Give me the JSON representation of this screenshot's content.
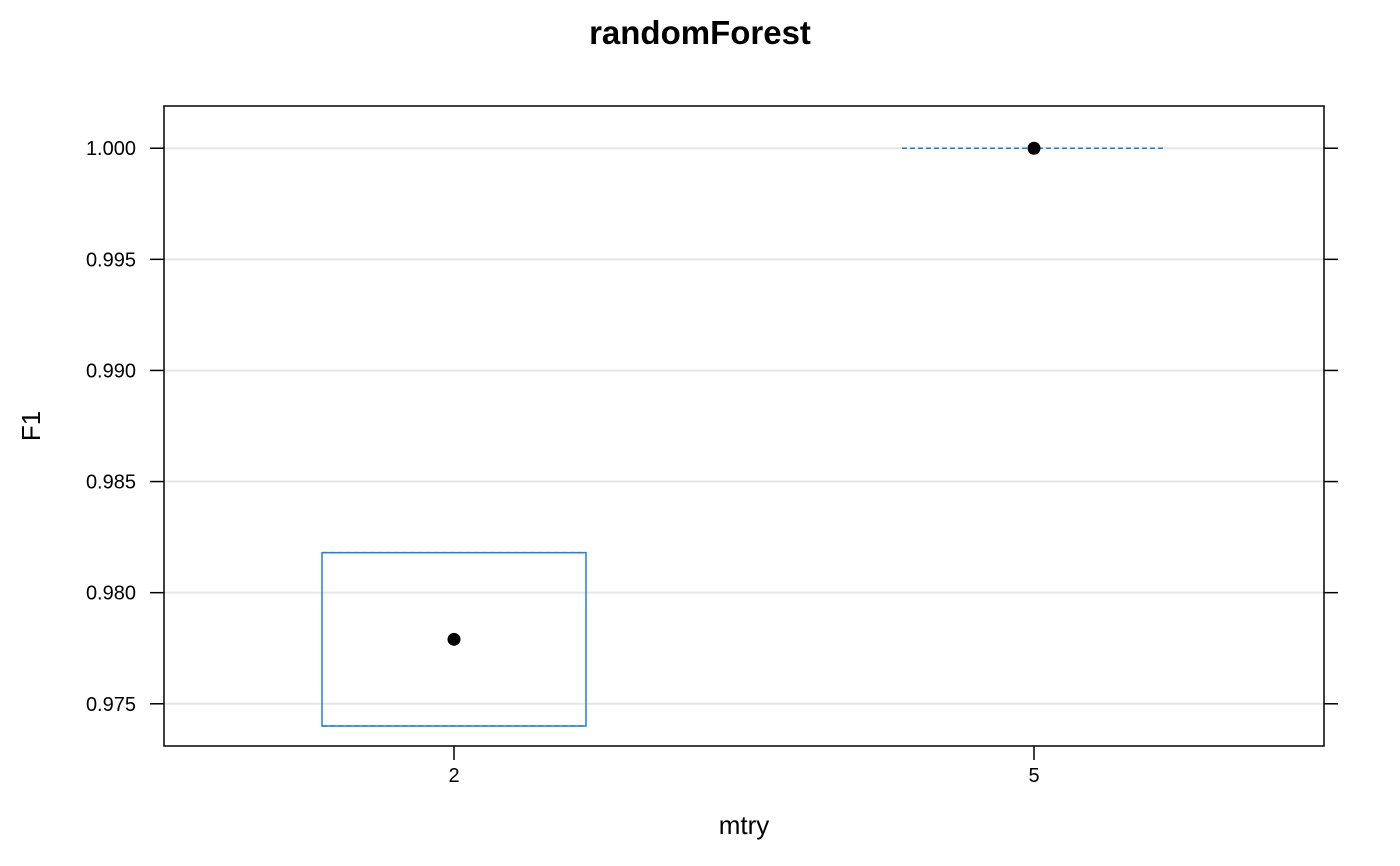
{
  "chart_data": {
    "type": "box",
    "title": "randomForest",
    "xlabel": "mtry",
    "ylabel": "F1",
    "categories": [
      "2",
      "5"
    ],
    "ylim": [
      0.9731,
      1.0019
    ],
    "yticks": [
      0.975,
      0.98,
      0.985,
      0.99,
      0.995,
      1.0
    ],
    "ytick_labels": [
      "0.975",
      "0.980",
      "0.985",
      "0.990",
      "0.995",
      "1.000"
    ],
    "grid": true,
    "boxes": [
      {
        "category": "2",
        "q1": 0.974,
        "median": 0.9779,
        "q3": 0.9818,
        "whisker_low": 0.974,
        "whisker_high": 0.9818
      },
      {
        "category": "5",
        "q1": 1.0,
        "median": 1.0,
        "q3": 1.0,
        "whisker_low": 1.0,
        "whisker_high": 1.0
      }
    ],
    "colors": {
      "box": "#1f7fe0",
      "grid": "#e6e6e6",
      "frame": "#000000",
      "median_point": "#000000"
    }
  }
}
